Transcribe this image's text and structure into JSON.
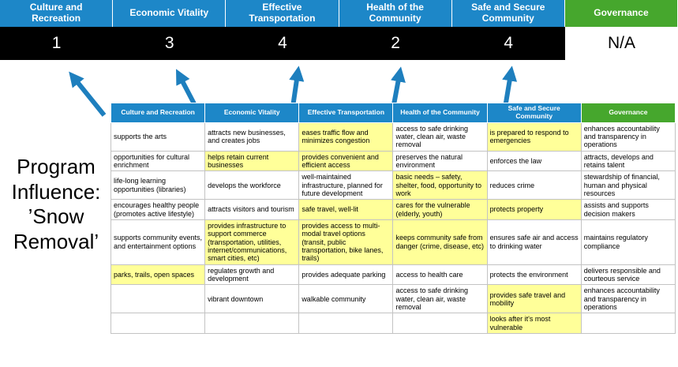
{
  "program_label": "Program Influence: ’Snow Removal’",
  "colors": {
    "blue": "#1d87c8",
    "green": "#46a72d",
    "highlight": "#ffff99",
    "arrow": "#1e7fbe",
    "score_bg": "#000000"
  },
  "banner": {
    "columns": [
      {
        "label": "Culture and Recreation",
        "score": "1",
        "theme": "blue"
      },
      {
        "label": "Economic Vitality",
        "score": "3",
        "theme": "blue"
      },
      {
        "label": "Effective Transportation",
        "score": "4",
        "theme": "blue"
      },
      {
        "label": "Health of the Community",
        "score": "2",
        "theme": "blue"
      },
      {
        "label": "Safe and Secure Community",
        "score": "4",
        "theme": "blue"
      },
      {
        "label": "Governance",
        "score": "N/A",
        "theme": "green"
      }
    ]
  },
  "matrix": {
    "headers": [
      {
        "label": "Culture and Recreation",
        "theme": "blue"
      },
      {
        "label": "Economic Vitality",
        "theme": "blue"
      },
      {
        "label": "Effective Transportation",
        "theme": "blue"
      },
      {
        "label": "Health of the Community",
        "theme": "blue"
      },
      {
        "label": "Safe and Secure Community",
        "theme": "blue"
      },
      {
        "label": "Governance",
        "theme": "green"
      }
    ],
    "rows": [
      [
        {
          "text": "supports the arts",
          "highlight": false
        },
        {
          "text": "attracts new businesses, and creates jobs",
          "highlight": false
        },
        {
          "text": "eases traffic flow and minimizes congestion",
          "highlight": true
        },
        {
          "text": "access to safe drinking water, clean air, waste removal",
          "highlight": false
        },
        {
          "text": "is prepared to respond to emergencies",
          "highlight": true
        },
        {
          "text": "enhances accountability and transparency in operations",
          "highlight": false
        }
      ],
      [
        {
          "text": "opportunities for cultural enrichment",
          "highlight": false
        },
        {
          "text": "helps retain current businesses",
          "highlight": true
        },
        {
          "text": "provides convenient and efficient access",
          "highlight": true
        },
        {
          "text": "preserves the natural environment",
          "highlight": false
        },
        {
          "text": "enforces the law",
          "highlight": false
        },
        {
          "text": "attracts, develops and retains talent",
          "highlight": false
        }
      ],
      [
        {
          "text": "life-long learning opportunities (libraries)",
          "highlight": false
        },
        {
          "text": "develops the workforce",
          "highlight": false
        },
        {
          "text": "well-maintained infrastructure, planned for future development",
          "highlight": false
        },
        {
          "text": "basic needs – safety, shelter, food, opportunity to work",
          "highlight": true
        },
        {
          "text": "reduces crime",
          "highlight": false
        },
        {
          "text": "stewardship of financial, human and physical resources",
          "highlight": false
        }
      ],
      [
        {
          "text": "encourages healthy people (promotes active lifestyle)",
          "highlight": false
        },
        {
          "text": "attracts visitors and tourism",
          "highlight": false
        },
        {
          "text": "safe travel, well-lit",
          "highlight": true
        },
        {
          "text": "cares for the vulnerable (elderly, youth)",
          "highlight": true
        },
        {
          "text": "protects property",
          "highlight": true
        },
        {
          "text": "assists and supports decision makers",
          "highlight": false
        }
      ],
      [
        {
          "text": "supports community events, and entertainment options",
          "highlight": false
        },
        {
          "text": "provides infrastructure to support commerce (transportation, utilities, internet/communications, smart cities, etc)",
          "highlight": true
        },
        {
          "text": "provides access to multi-modal travel options (transit, public transportation, bike lanes, trails)",
          "highlight": true
        },
        {
          "text": "keeps community safe from danger (crime, disease, etc)",
          "highlight": true
        },
        {
          "text": "ensures safe air and access to drinking water",
          "highlight": false
        },
        {
          "text": "maintains regulatory compliance",
          "highlight": false
        }
      ],
      [
        {
          "text": "parks, trails, open spaces",
          "highlight": true
        },
        {
          "text": "regulates growth and development",
          "highlight": false
        },
        {
          "text": "provides adequate parking",
          "highlight": false
        },
        {
          "text": "access to health care",
          "highlight": false
        },
        {
          "text": "protects the environment",
          "highlight": false
        },
        {
          "text": "delivers responsible and courteous service",
          "highlight": false
        }
      ],
      [
        {
          "text": "",
          "highlight": false
        },
        {
          "text": "vibrant downtown",
          "highlight": false
        },
        {
          "text": "walkable community",
          "highlight": false
        },
        {
          "text": "access to safe drinking water, clean air, waste removal",
          "highlight": false
        },
        {
          "text": "provides safe travel and mobility",
          "highlight": true
        },
        {
          "text": "enhances accountability and transparency in operations",
          "highlight": false
        }
      ],
      [
        {
          "text": "",
          "highlight": false
        },
        {
          "text": "",
          "highlight": false
        },
        {
          "text": "",
          "highlight": false
        },
        {
          "text": "",
          "highlight": false
        },
        {
          "text": "looks after it's most vulnerable",
          "highlight": true
        },
        {
          "text": "",
          "highlight": false
        }
      ]
    ]
  }
}
